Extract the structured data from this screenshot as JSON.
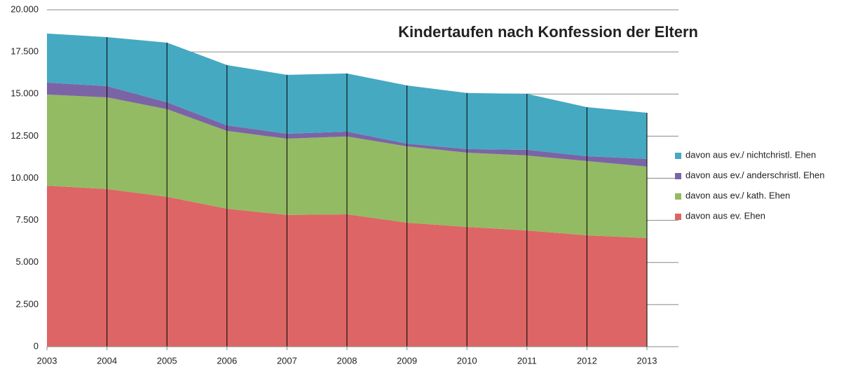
{
  "chart_data": {
    "type": "stacked-area",
    "title": "Kindertaufen nach Konfession der Eltern",
    "categories": [
      "2003",
      "2004",
      "2005",
      "2006",
      "2007",
      "2008",
      "2009",
      "2010",
      "2011",
      "2012",
      "2013"
    ],
    "series": [
      {
        "name": "davon aus ev. Ehen",
        "color": "#dd6565",
        "values": [
          9560,
          9360,
          8900,
          8190,
          7820,
          7860,
          7360,
          7110,
          6900,
          6610,
          6450
        ]
      },
      {
        "name": "davon aus ev./ kath. Ehen",
        "color": "#93bb63",
        "values": [
          5410,
          5440,
          5200,
          4620,
          4530,
          4620,
          4530,
          4410,
          4450,
          4410,
          4240
        ]
      },
      {
        "name": "davon aus ev./ anderschristl. Ehen",
        "color": "#7b64a6",
        "values": [
          710,
          670,
          410,
          330,
          290,
          290,
          170,
          210,
          340,
          290,
          460
        ]
      },
      {
        "name": "davon aus ev./ nichtchristl. Ehen",
        "color": "#45a9c2",
        "values": [
          2910,
          2910,
          3540,
          3580,
          3500,
          3450,
          3450,
          3330,
          3320,
          2910,
          2740
        ]
      }
    ],
    "ylim": [
      0,
      20000
    ],
    "yticks": [
      0,
      {
        "value": 2500,
        "label": "2.500"
      },
      {
        "value": 5000,
        "label": "5.000"
      },
      {
        "value": 7500,
        "label": "7.500"
      },
      {
        "value": 10000,
        "label": "10.000"
      },
      {
        "value": 12500,
        "label": "12.500"
      },
      {
        "value": 15000,
        "label": "15.000"
      },
      {
        "value": 17500,
        "label": "17.500"
      },
      {
        "value": 20000,
        "label": "20.000"
      }
    ],
    "grid": true
  }
}
